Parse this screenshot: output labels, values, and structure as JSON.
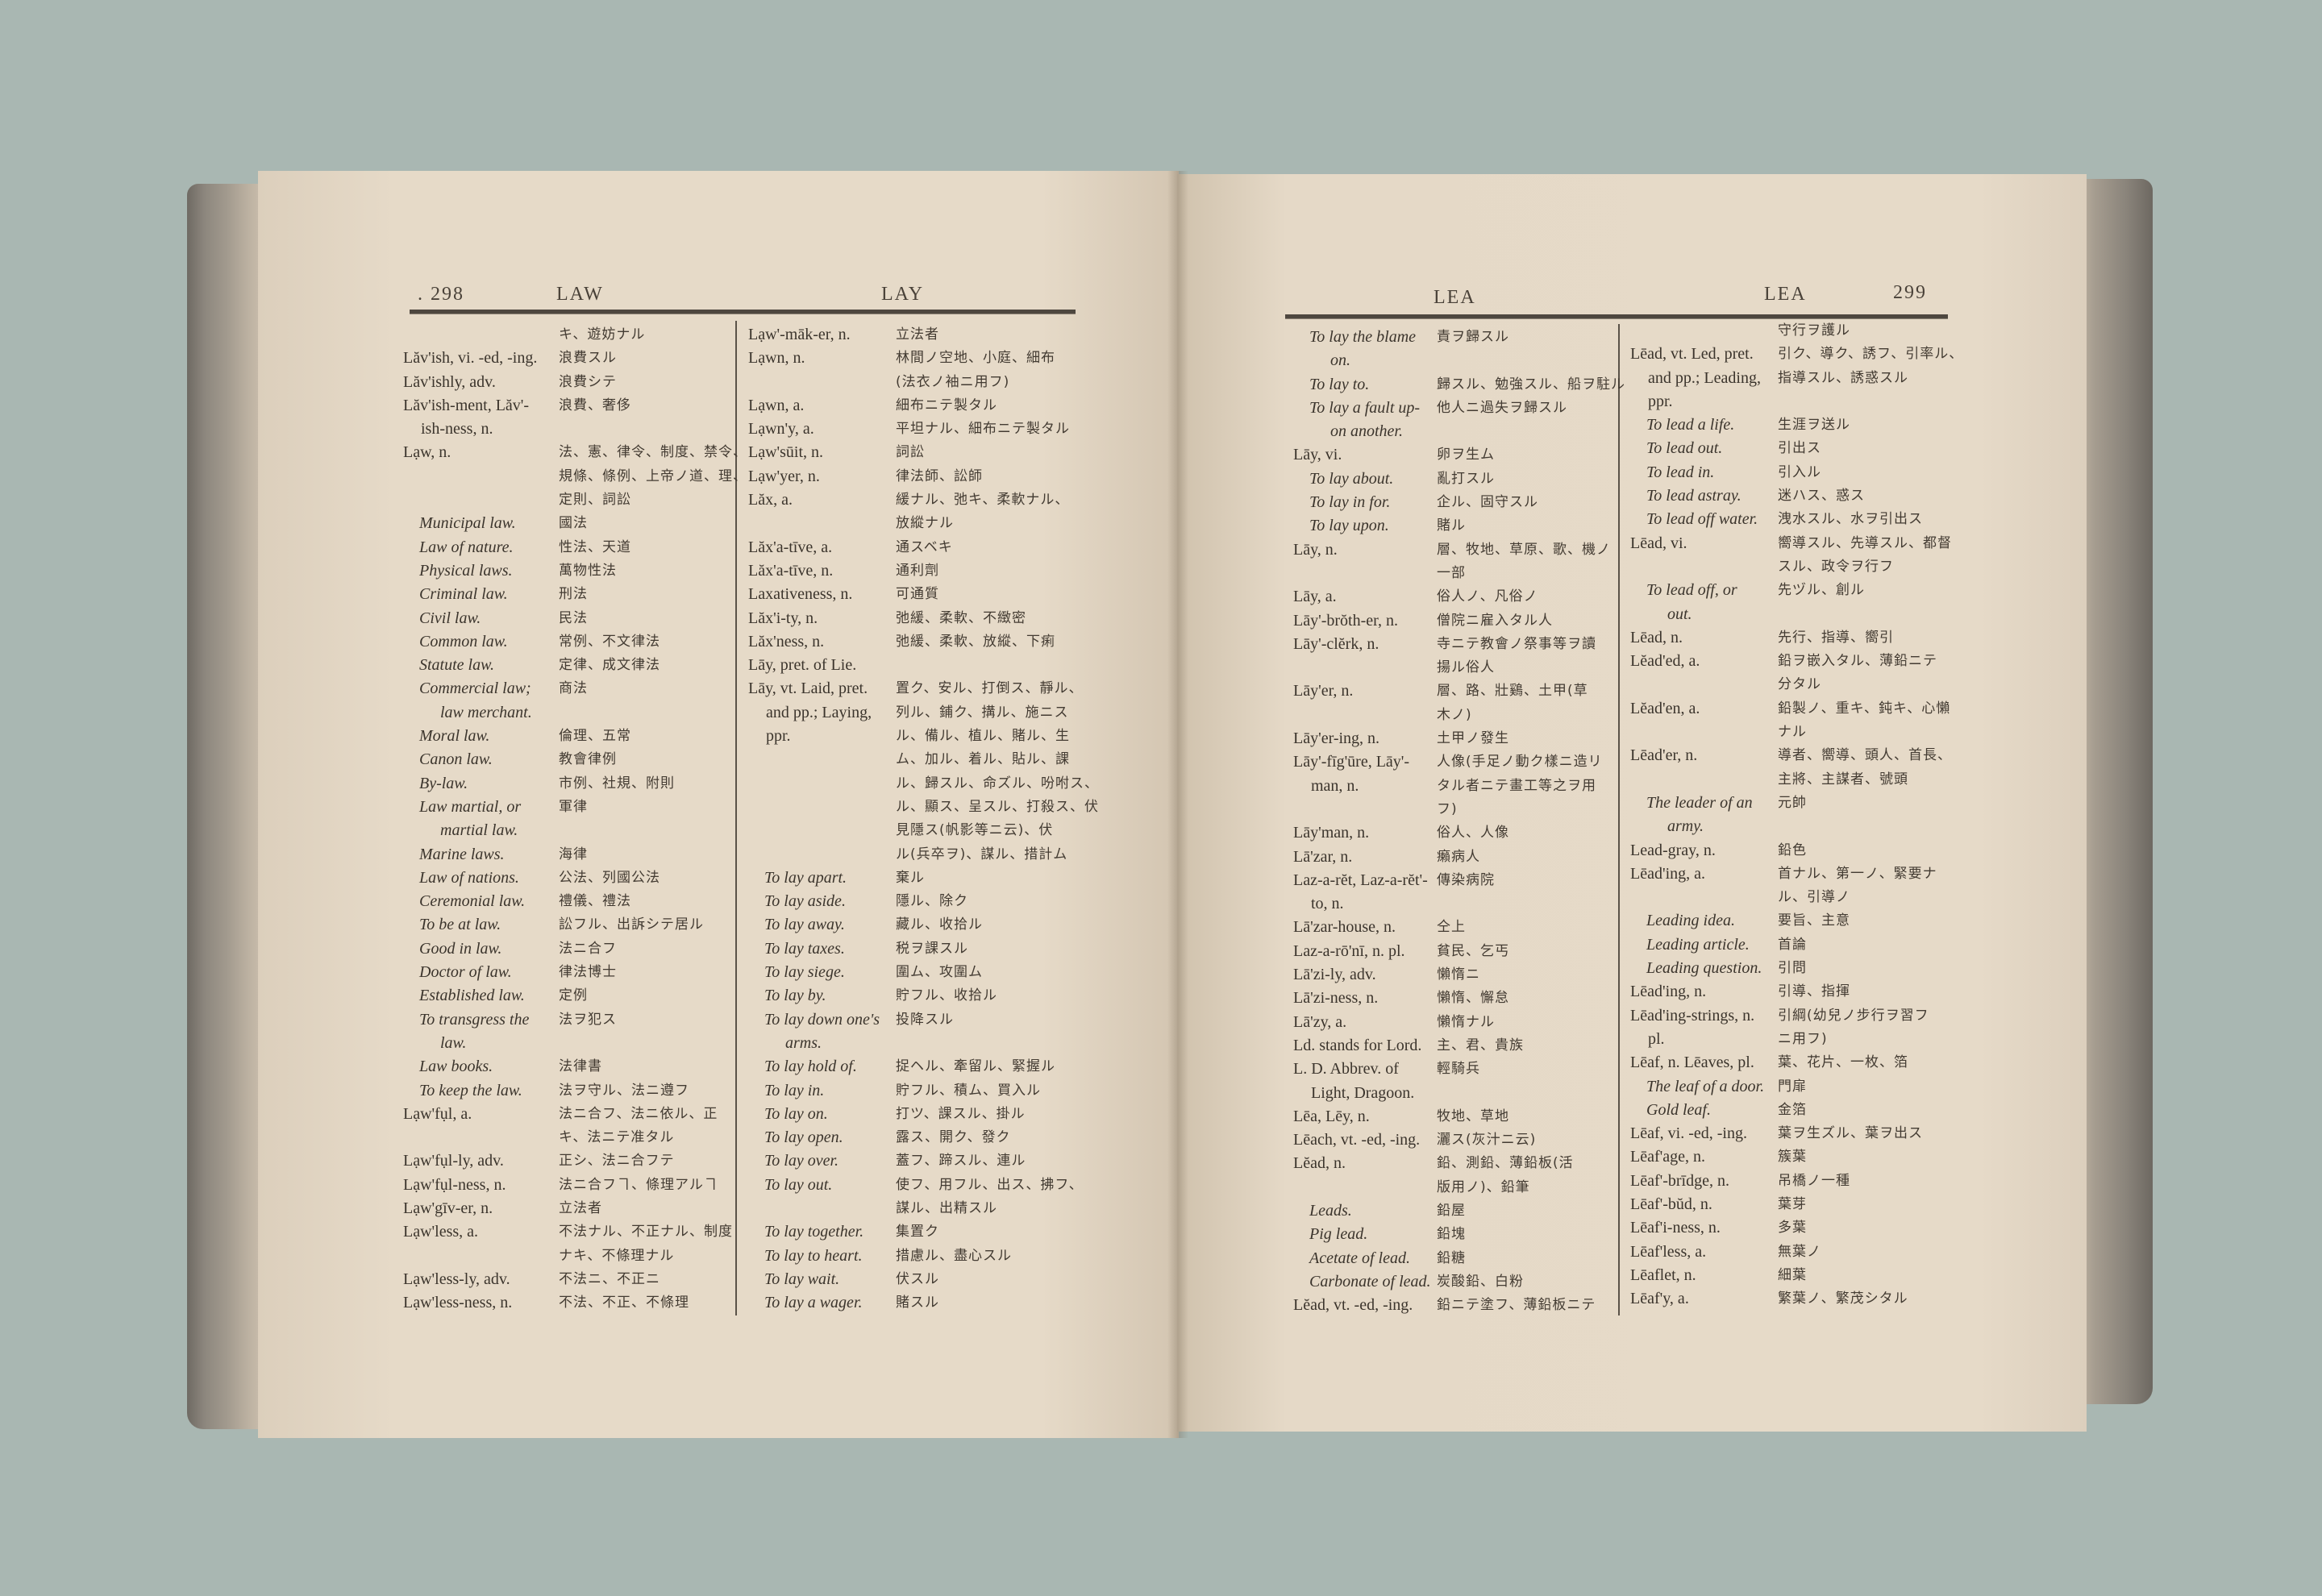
{
  "left_page": {
    "page_number": ". 298",
    "guide_word_left": "LAW",
    "guide_word_right": "LAY",
    "columns": [
      [
        [
          "",
          "キ、遊妨ナル",
          ""
        ],
        [
          "Lăv'ish, vi. -ed, -ing.",
          "浪費スル",
          ""
        ],
        [
          "Lăv'ishly, adv.",
          "浪費シテ",
          ""
        ],
        [
          "Lăv'ish-ment, Lăv'-",
          "浪費、奢侈",
          ""
        ],
        [
          "ish-ness, n.",
          "",
          "c"
        ],
        [
          "Lạw, n.",
          "法、憲、律令、制度、禁令、",
          ""
        ],
        [
          "",
          "規條、條例、上帝ノ道、理、",
          ""
        ],
        [
          "",
          "定則、詞訟",
          ""
        ],
        [
          "Municipal law.",
          "國法",
          "i"
        ],
        [
          "Law of nature.",
          "性法、天道",
          "i"
        ],
        [
          "Physical laws.",
          "萬物性法",
          "i"
        ],
        [
          "Criminal law.",
          "刑法",
          "i"
        ],
        [
          "Civil law.",
          "民法",
          "i"
        ],
        [
          "Common law.",
          "常例、不文律法",
          "i"
        ],
        [
          "Statute law.",
          "定律、成文律法",
          "i"
        ],
        [
          "Commercial law;",
          "商法",
          "i"
        ],
        [
          "law merchant.",
          "",
          "ci"
        ],
        [
          "Moral law.",
          "倫理、五常",
          "i"
        ],
        [
          "Canon law.",
          "教會律例",
          "i"
        ],
        [
          "By-law.",
          "市例、社規、附則",
          "i"
        ],
        [
          "Law martial, or",
          "軍律",
          "i"
        ],
        [
          "martial law.",
          "",
          "ci"
        ],
        [
          "Marine laws.",
          "海律",
          "i"
        ],
        [
          "Law of nations.",
          "公法、列國公法",
          "i"
        ],
        [
          "Ceremonial law.",
          "禮儀、禮法",
          "i"
        ],
        [
          "To be at law.",
          "訟フル、出訴シテ居ル",
          "i"
        ],
        [
          "Good in law.",
          "法ニ合フ",
          "i"
        ],
        [
          "Doctor of law.",
          "律法博士",
          "i"
        ],
        [
          "Established law.",
          "定例",
          "i"
        ],
        [
          "To transgress the",
          "法ヲ犯ス",
          "i"
        ],
        [
          "law.",
          "",
          "ci"
        ],
        [
          "Law books.",
          "法律書",
          "i"
        ],
        [
          "To keep the law.",
          "法ヲ守ル、法ニ遵フ",
          "i"
        ],
        [
          "Lạw'fụl, a.",
          "法ニ合フ、法ニ依ル、正",
          ""
        ],
        [
          "",
          "キ、法ニテ准タル",
          ""
        ],
        [
          "Lạw'fụl-ly, adv.",
          "正シ、法ニ合フテ",
          ""
        ],
        [
          "Lạw'fụl-ness, n.",
          "法ニ合フヿ、條理アルヿ",
          ""
        ],
        [
          "Lạw'gīv-er, n.",
          "立法者",
          ""
        ],
        [
          "Lạw'less, a.",
          "不法ナル、不正ナル、制度",
          ""
        ],
        [
          "",
          "ナキ、不條理ナル",
          ""
        ],
        [
          "Lạw'less-ly, adv.",
          "不法ニ、不正ニ",
          ""
        ],
        [
          "Lạw'less-ness, n.",
          "不法、不正、不條理",
          ""
        ]
      ],
      [
        [
          "Lạw'-māk-er, n.",
          "立法者",
          ""
        ],
        [
          "Lạwn, n.",
          "林間ノ空地、小庭、細布",
          ""
        ],
        [
          "",
          "(法衣ノ袖ニ用フ)",
          ""
        ],
        [
          "Lạwn, a.",
          "細布ニテ製タル",
          ""
        ],
        [
          "Lạwn'y, a.",
          "平坦ナル、細布ニテ製タル",
          ""
        ],
        [
          "Lạw'sūit, n.",
          "詞訟",
          ""
        ],
        [
          "Lạw'yer, n.",
          "律法師、訟師",
          ""
        ],
        [
          "Lăx, a.",
          "緩ナル、弛キ、柔軟ナル、",
          ""
        ],
        [
          "",
          "放縱ナル",
          ""
        ],
        [
          "Lăx'a-tīve, a.",
          "通スベキ",
          ""
        ],
        [
          "Lăx'a-tīve, n.",
          "通利劑",
          ""
        ],
        [
          "Laxativeness, n.",
          "可通質",
          ""
        ],
        [
          "Lăx'i-ty, n.",
          "弛緩、柔軟、不緻密",
          ""
        ],
        [
          "Lăx'ness, n.",
          "弛緩、柔軟、放縱、下痢",
          ""
        ],
        [
          "Lāy, pret. of Lie.",
          "",
          ""
        ],
        [
          "Lāy, vt. Laid, pret.",
          "置ク、安ル、打倒ス、靜ル、",
          ""
        ],
        [
          "and pp.; Laying,",
          "列ル、鋪ク、搆ル、施ニス",
          "c"
        ],
        [
          "ppr.",
          "ル、備ル、植ル、賭ル、生",
          "c"
        ],
        [
          "",
          "ム、加ル、着ル、貼ル、課",
          ""
        ],
        [
          "",
          "ル、歸スル、命ズル、吩咐ス、",
          ""
        ],
        [
          "",
          "ル、顯ス、呈スル、打殺ス、伏",
          ""
        ],
        [
          "",
          "見隱ス(帆影等ニ云)、伏",
          ""
        ],
        [
          "",
          "ル(兵卒ヲ)、謀ル、措計ム",
          ""
        ],
        [
          "To lay apart.",
          "棄ル",
          "i"
        ],
        [
          "To lay aside.",
          "隱ル、除ク",
          "i"
        ],
        [
          "To lay away.",
          "藏ル、收拾ル",
          "i"
        ],
        [
          "To lay taxes.",
          "税ヲ課スル",
          "i"
        ],
        [
          "To lay siege.",
          "圍ム、攻圍ム",
          "i"
        ],
        [
          "To lay by.",
          "貯フル、收拾ル",
          "i"
        ],
        [
          "To lay down one's",
          "投降スル",
          "i"
        ],
        [
          "arms.",
          "",
          "ci"
        ],
        [
          "To lay hold of.",
          "捉ヘル、牽留ル、緊握ル",
          "i"
        ],
        [
          "To lay in.",
          "貯フル、積ム、買入ル",
          "i"
        ],
        [
          "To lay on.",
          "打ツ、課スル、掛ル",
          "i"
        ],
        [
          "To lay open.",
          "露ス、開ク、發ク",
          "i"
        ],
        [
          "To lay over.",
          "蓋フ、蹄スル、連ル",
          "i"
        ],
        [
          "To lay out.",
          "使フ、用フル、出ス、拂フ、",
          "i"
        ],
        [
          "",
          "謀ル、出精スル",
          ""
        ],
        [
          "To lay together.",
          "集置ク",
          "i"
        ],
        [
          "To lay to heart.",
          "措慮ル、盡心スル",
          "i"
        ],
        [
          "To lay wait.",
          "伏スル",
          "i"
        ],
        [
          "To lay a wager.",
          "賭スル",
          "i"
        ]
      ]
    ]
  },
  "right_page": {
    "page_number": "299",
    "guide_word_left": "LEA",
    "guide_word_right": "LEA",
    "columns": [
      [
        [
          "To lay the blame",
          "責ヲ歸スル",
          "i"
        ],
        [
          "on.",
          "",
          "ci"
        ],
        [
          "To lay to.",
          "歸スル、勉強スル、船ヲ駐ル",
          "i"
        ],
        [
          "To lay a fault up-",
          "他人ニ過失ヲ歸スル",
          "i"
        ],
        [
          "on another.",
          "",
          "ci"
        ],
        [
          "Lāy, vi.",
          "卵ヲ生ム",
          ""
        ],
        [
          "To lay about.",
          "亂打スル",
          "i"
        ],
        [
          "To lay in for.",
          "企ル、固守スル",
          "i"
        ],
        [
          "To lay upon.",
          "賭ル",
          "i"
        ],
        [
          "Lāy, n.",
          "層、牧地、草原、歌、機ノ",
          ""
        ],
        [
          "",
          "一部",
          ""
        ],
        [
          "Lāy, a.",
          "俗人ノ、凡俗ノ",
          ""
        ],
        [
          "Lāy'-brŏth-er, n.",
          "僧院ニ雇入タル人",
          ""
        ],
        [
          "Lāy'-clĕrk, n.",
          "寺ニテ教會ノ祭事等ヲ讀",
          ""
        ],
        [
          "",
          "揚ル俗人",
          ""
        ],
        [
          "Lāy'er, n.",
          "層、路、壯鷄、土甲(草",
          ""
        ],
        [
          "",
          "木ノ)",
          ""
        ],
        [
          "Lāy'er-ing, n.",
          "土甲ノ發生",
          ""
        ],
        [
          "Lāy'-fīg'ūre, Lāy'-",
          "人像(手足ノ動ク樣ニ造リ",
          ""
        ],
        [
          "man, n.",
          "タル者ニテ畫工等之ヲ用",
          "c"
        ],
        [
          "",
          "フ)",
          ""
        ],
        [
          "Lāy'man, n.",
          "俗人、人像",
          ""
        ],
        [
          "Lā'zar, n.",
          "癩病人",
          ""
        ],
        [
          "Laz-a-rĕt, Laz-a-rĕt'-",
          "傳染病院",
          ""
        ],
        [
          "to, n.",
          "",
          "c"
        ],
        [
          "Lā'zar-house, n.",
          "仝上",
          ""
        ],
        [
          "Laz-a-rō'nī, n. pl.",
          "貧民、乞丐",
          ""
        ],
        [
          "Lā'zi-ly, adv.",
          "懶惰ニ",
          ""
        ],
        [
          "Lā'zi-ness, n.",
          "懶惰、懈怠",
          ""
        ],
        [
          "Lā'zy, a.",
          "懶惰ナル",
          ""
        ],
        [
          "Ld. stands for Lord.",
          "主、君、貴族",
          ""
        ],
        [
          "L. D. Abbrev. of",
          "輕騎兵",
          ""
        ],
        [
          "Light, Dragoon.",
          "",
          "c"
        ],
        [
          "Lēa, Lēy, n.",
          "牧地、草地",
          ""
        ],
        [
          "Lēach, vt. -ed, -ing.",
          "灑ス(灰汁ニ云)",
          ""
        ],
        [
          "Lĕad, n.",
          "鉛、測鉛、薄鉛板(活",
          ""
        ],
        [
          "",
          "版用ノ)、鉛筆",
          ""
        ],
        [
          "Leads.",
          "鉛屋",
          "i"
        ],
        [
          "Pig lead.",
          "鉛塊",
          "i"
        ],
        [
          "Acetate of lead.",
          "鉛糖",
          "i"
        ],
        [
          "Carbonate of lead.",
          "炭酸鉛、白粉",
          "i"
        ],
        [
          "Lĕad, vt. -ed, -ing.",
          "鉛ニテ塗フ、薄鉛板ニテ",
          ""
        ]
      ],
      [
        [
          "",
          "守行ヲ護ル",
          ""
        ],
        [
          "Lēad, vt. Led, pret.",
          "引ク、導ク、誘フ、引率ル、",
          ""
        ],
        [
          "and pp.; Leading,",
          "指導スル、誘惑スル",
          "c"
        ],
        [
          "ppr.",
          "",
          "c"
        ],
        [
          "To lead a life.",
          "生涯ヲ送ル",
          "i"
        ],
        [
          "To lead out.",
          "引出ス",
          "i"
        ],
        [
          "To lead in.",
          "引入ル",
          "i"
        ],
        [
          "To lead astray.",
          "迷ハス、惑ス",
          "i"
        ],
        [
          "To lead off water.",
          "洩水スル、水ヲ引出ス",
          "i"
        ],
        [
          "Lēad, vi.",
          "嚮導スル、先導スル、都督",
          ""
        ],
        [
          "",
          "スル、政令ヲ行フ",
          ""
        ],
        [
          "To lead off, or",
          "先ヅル、創ル",
          "i"
        ],
        [
          "out.",
          "",
          "ci"
        ],
        [
          "Lēad, n.",
          "先行、指導、嚮引",
          ""
        ],
        [
          "Lĕad'ed, a.",
          "鉛ヲ嵌入タル、薄鉛ニテ",
          ""
        ],
        [
          "",
          "分タル",
          ""
        ],
        [
          "Lĕad'en, a.",
          "鉛製ノ、重キ、鈍キ、心懶",
          ""
        ],
        [
          "",
          "ナル",
          ""
        ],
        [
          "Lēad'er, n.",
          "導者、嚮導、頭人、首長、",
          ""
        ],
        [
          "",
          "主將、主謀者、號頭",
          ""
        ],
        [
          "The leader of an",
          "元帥",
          "i"
        ],
        [
          "army.",
          "",
          "ci"
        ],
        [
          "Lead-gray, n.",
          "鉛色",
          ""
        ],
        [
          "Lēad'ing, a.",
          "首ナル、第一ノ、緊要ナ",
          ""
        ],
        [
          "",
          "ル、引導ノ",
          ""
        ],
        [
          "Leading idea.",
          "要旨、主意",
          "i"
        ],
        [
          "Leading article.",
          "首論",
          "i"
        ],
        [
          "Leading question.",
          "引問",
          "i"
        ],
        [
          "Lēad'ing, n.",
          "引導、指揮",
          ""
        ],
        [
          "Lēad'ing-strings, n.",
          "引綱(幼兒ノ步行ヲ習フ",
          ""
        ],
        [
          "pl.",
          "ニ用フ)",
          "c"
        ],
        [
          "Lēaf, n. Lēaves, pl.",
          "葉、花片、一枚、箔",
          ""
        ],
        [
          "The leaf of a door.",
          "門扉",
          "i"
        ],
        [
          "Gold leaf.",
          "金箔",
          "i"
        ],
        [
          "Lēaf, vi. -ed, -ing.",
          "葉ヲ生ズル、葉ヲ出ス",
          ""
        ],
        [
          "Lēaf'age, n.",
          "簇葉",
          ""
        ],
        [
          "Lēaf'-brīdge, n.",
          "吊橋ノ一種",
          ""
        ],
        [
          "Lēaf'-bŭd, n.",
          "葉芽",
          ""
        ],
        [
          "Lēaf'i-ness, n.",
          "多葉",
          ""
        ],
        [
          "Lēaf'less, a.",
          "無葉ノ",
          ""
        ],
        [
          "Lēaflet, n.",
          "細葉",
          ""
        ],
        [
          "Lēaf'y, a.",
          "繁葉ノ、繁茂シタル",
          ""
        ]
      ]
    ]
  }
}
